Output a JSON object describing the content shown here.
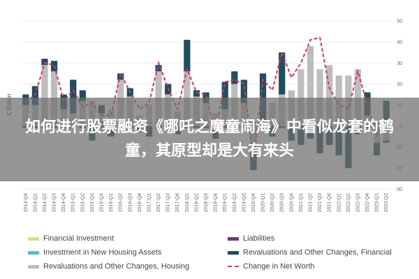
{
  "chart_data": {
    "type": "bar",
    "ylabel": "€ Billion",
    "ylim": [
      -30,
      50
    ],
    "yticks": [
      50,
      40,
      30,
      20,
      10,
      0,
      -10,
      -20,
      -30
    ],
    "categories": [
      "2013-Q4",
      "2014-Q1",
      "2014-Q2",
      "2014-Q3",
      "2014-Q4",
      "2015-Q1",
      "2015-Q2",
      "2015-Q3",
      "2015-Q4",
      "2016-Q1",
      "2016-Q2",
      "2016-Q3",
      "2016-Q4",
      "2017-Q1",
      "2017-Q2",
      "2017-Q3",
      "2017-Q4",
      "2018-Q1",
      "2018-Q2",
      "2018-Q3",
      "2018-Q4",
      "2019-Q1",
      "2019-Q2",
      "2019-Q3",
      "2019-Q4",
      "2020-Q1",
      "2020-Q2",
      "2020-Q3",
      "2020-Q4",
      "2021-Q1",
      "2021-Q2",
      "2021-Q3",
      "2021-Q4",
      "2022-Q1",
      "2022-Q2",
      "2022-Q3",
      "2022-Q4",
      "2023-Q1",
      "2023-Q2"
    ],
    "series": [
      {
        "name": "Financial Investment",
        "color": "#d4dd8c",
        "values": [
          1,
          1,
          2,
          1,
          1,
          1,
          1,
          0,
          1,
          1,
          1,
          1,
          1,
          1,
          1,
          1,
          1,
          1,
          1,
          1,
          1,
          1,
          1,
          1,
          1,
          1,
          1,
          1,
          1,
          1,
          1,
          1,
          1,
          1,
          1,
          1,
          1,
          1,
          1
        ]
      },
      {
        "name": "Investment in New Housing Assets",
        "color": "#4fc3c0",
        "values": [
          1,
          1,
          1,
          1,
          1,
          1,
          1,
          1,
          1,
          1,
          1,
          1,
          1,
          1,
          1,
          1,
          1,
          1,
          1,
          1,
          1,
          1,
          1,
          1,
          1,
          1,
          1,
          1,
          1,
          1,
          1,
          1,
          1,
          1,
          1,
          1,
          1,
          1,
          1
        ]
      },
      {
        "name": "Revaluations and Other Changes, Housing",
        "color": "#bdbdbd",
        "values": [
          8,
          8,
          26,
          24,
          6,
          4,
          10,
          11,
          4,
          6,
          20,
          12,
          3,
          8,
          24,
          13,
          5,
          24,
          12,
          9,
          4,
          6,
          18,
          9,
          -10,
          0,
          9,
          13,
          15,
          25,
          36,
          25,
          27,
          22,
          22,
          25,
          3,
          -8,
          -7
        ]
      },
      {
        "name": "Liabilities",
        "color": "#6b3a7a",
        "values": [
          -1,
          -1,
          -1,
          -1,
          -1,
          -1,
          -1,
          -1,
          -1,
          -1,
          -1,
          -1,
          -1,
          -1,
          -1,
          -1,
          -1,
          -1,
          -1,
          -1,
          -1,
          -1,
          -1,
          -1,
          -1,
          -1,
          -1,
          -1,
          -1,
          -1,
          -1,
          -1,
          -1,
          -1,
          -1,
          -1,
          -1,
          -1,
          -1
        ]
      },
      {
        "name": "Revaluations and Other Changes, Financial",
        "color": "#1f4e5f",
        "values": [
          5,
          9,
          3,
          5,
          7,
          16,
          5,
          -6,
          4,
          -4,
          3,
          4,
          -2,
          -4,
          3,
          5,
          -3,
          15,
          3,
          5,
          -5,
          13,
          6,
          11,
          -10,
          23,
          -4,
          20,
          -6,
          -8,
          -5,
          -12,
          -8,
          -13,
          -19,
          -3,
          11,
          -5,
          10
        ]
      },
      {
        "name": "Change in Net Worth",
        "color": "#d6336c",
        "line": true,
        "values": [
          11,
          15,
          30,
          29,
          12,
          17,
          9,
          11,
          5,
          5,
          25,
          16,
          8,
          11,
          30,
          18,
          8,
          27,
          16,
          15,
          -3,
          21,
          22,
          20,
          -17,
          22,
          17,
          35,
          23,
          30,
          41,
          42,
          18,
          10,
          8,
          26,
          10,
          -4,
          0
        ]
      }
    ],
    "legend": "bottom"
  },
  "overlay": {
    "text": "如何进行股票融资《哪吒之魔童闹海》中看似龙套的鹤童，其原型却是大有来头"
  }
}
